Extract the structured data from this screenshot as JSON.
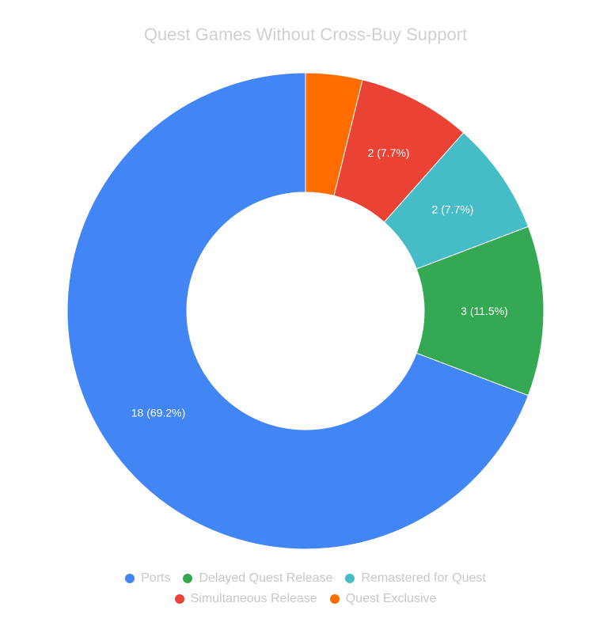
{
  "chart_data": {
    "type": "pie",
    "subtype": "donut",
    "title": "Quest Games Without Cross-Buy Support",
    "slices": [
      {
        "label": "Ports",
        "value": 18,
        "percent": 69.2,
        "color": "#4285f4",
        "data_label": "18 (69.2%)"
      },
      {
        "label": "Delayed Quest Release",
        "value": 3,
        "percent": 11.5,
        "color": "#34a853",
        "data_label": "3 (11.5%)"
      },
      {
        "label": "Remastered for Quest",
        "value": 2,
        "percent": 7.7,
        "color": "#46bdc6",
        "data_label": "2 (7.7%)"
      },
      {
        "label": "Simultaneous Release",
        "value": 2,
        "percent": 7.7,
        "color": "#ea4335",
        "data_label": "2 (7.7%)"
      },
      {
        "label": "Quest Exclusive",
        "value": 1,
        "percent": 3.8,
        "color": "#ff6d01",
        "data_label": ""
      }
    ],
    "legend": {
      "placement": "bottom",
      "rows": [
        [
          "Ports",
          "Delayed Quest Release",
          "Remastered for Quest"
        ],
        [
          "Simultaneous Release",
          "Quest Exclusive"
        ]
      ]
    },
    "start_angle_deg": 0,
    "direction": "counterclockwise"
  }
}
